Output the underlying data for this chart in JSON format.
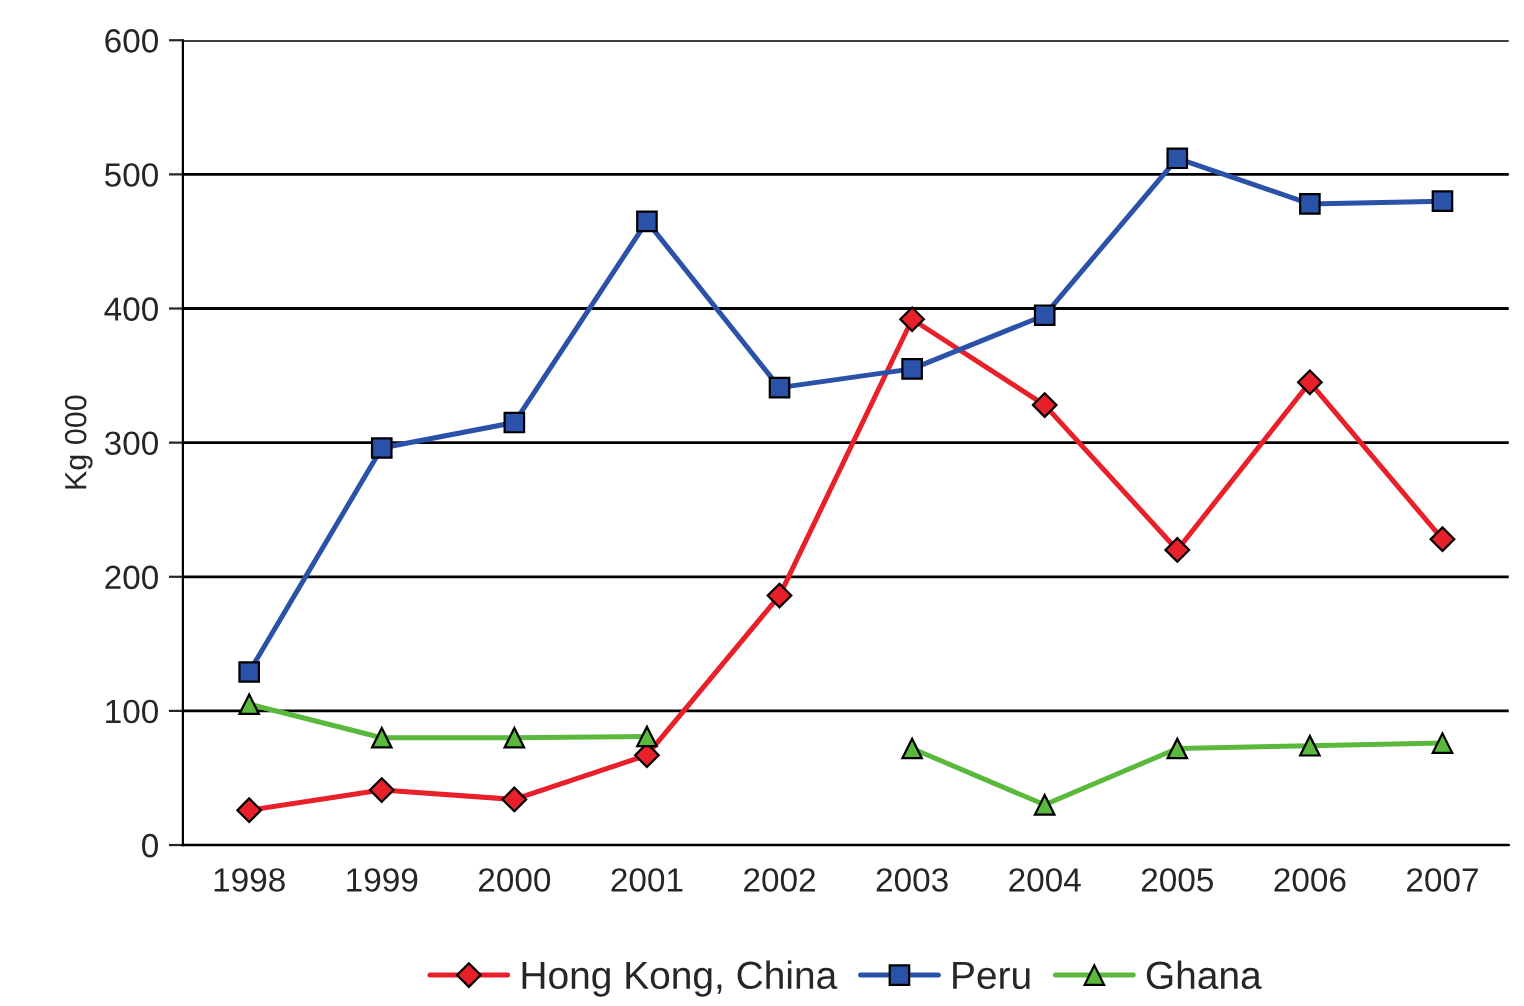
{
  "chart_data": {
    "type": "line",
    "ylabel": "Kg 000",
    "categories": [
      "1998",
      "1999",
      "2000",
      "2001",
      "2002",
      "2003",
      "2004",
      "2005",
      "2006",
      "2007"
    ],
    "series": [
      {
        "name": "Hong Kong, China",
        "color": "#e8202a",
        "marker": "diamond",
        "values": [
          26,
          41,
          34,
          67,
          186,
          392,
          328,
          220,
          345,
          228
        ]
      },
      {
        "name": "Peru",
        "color": "#2a52a8",
        "marker": "square",
        "values": [
          129,
          296,
          315,
          465,
          341,
          355,
          395,
          512,
          478,
          480
        ]
      },
      {
        "name": "Ghana",
        "color": "#5ab83c",
        "marker": "triangle",
        "values": [
          105,
          80,
          80,
          81,
          null,
          72,
          30,
          72,
          74,
          76
        ]
      }
    ],
    "ylim": [
      0,
      600
    ],
    "yticks": [
      0,
      100,
      200,
      300,
      400,
      500,
      600
    ],
    "grid": "y",
    "legend": "bottom"
  }
}
